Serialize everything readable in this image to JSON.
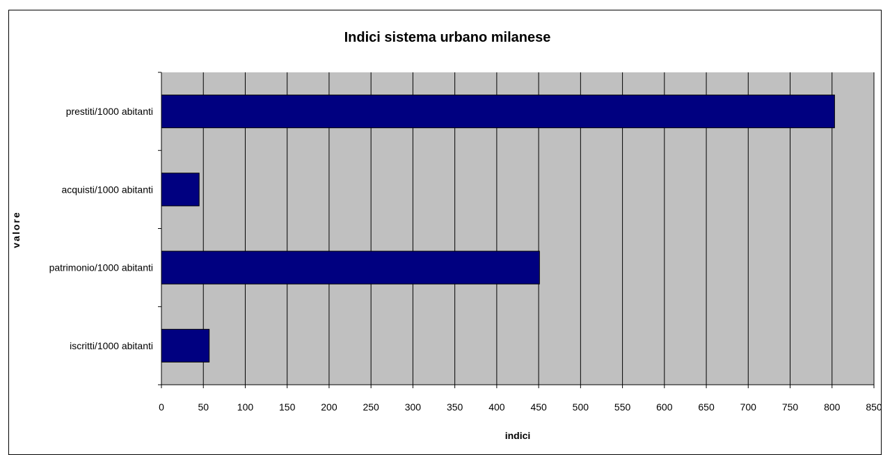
{
  "chart_data": {
    "type": "bar",
    "orientation": "horizontal",
    "title": "Indici sistema urbano milanese",
    "xlabel": "indici",
    "ylabel": "valore",
    "categories": [
      "prestiti/1000 abitanti",
      "acquisti/1000 abitanti",
      "patrimonio/1000 abitanti",
      "iscritti/1000 abitanti"
    ],
    "values": [
      803,
      45,
      451,
      57
    ],
    "xlim": [
      0,
      850
    ],
    "xticks": [
      0,
      50,
      100,
      150,
      200,
      250,
      300,
      350,
      400,
      450,
      500,
      550,
      600,
      650,
      700,
      750,
      800,
      850
    ],
    "grid": "vertical",
    "legend": "none",
    "colors": {
      "bar": "#000080",
      "plot_background": "#C0C0C0",
      "grid": "#000000"
    }
  }
}
